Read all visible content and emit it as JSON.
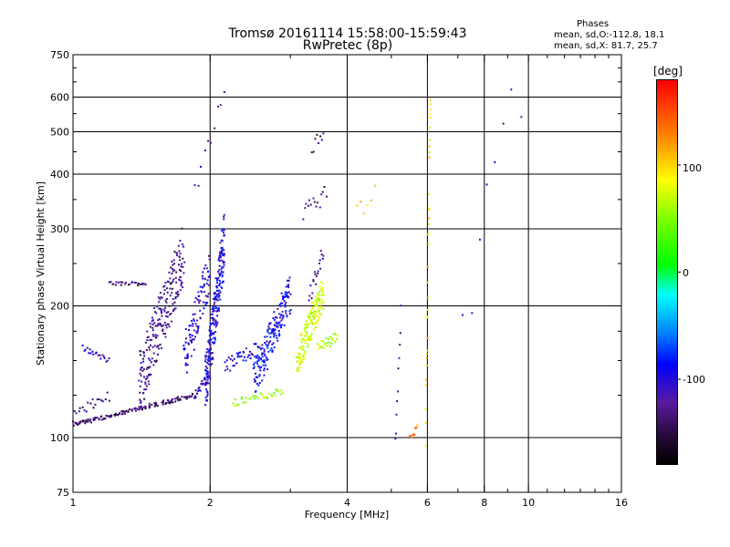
{
  "header": {
    "title_line1": "Tromsø 20161114 15:58:00-15:59:43",
    "title_line2": "RwPretec (8p)",
    "phases_title": "Phases",
    "phases_line1": "mean, sd,O:-112.8, 18.1",
    "phases_line2": "mean, sd,X:  81.7, 25.7"
  },
  "colorbar": {
    "unit_label": "[deg]",
    "ticks": [
      "100",
      "0",
      "-100"
    ],
    "tick_values": [
      100,
      0,
      -100
    ],
    "range": [
      -180,
      180
    ]
  },
  "colors": {
    "frame": "#000000",
    "background": "#ffffff"
  },
  "chart_data": {
    "type": "scatter",
    "title": "Tromsø 20161114 15:58:00-15:59:43",
    "subtitle": "RwPretec (8p)",
    "xlabel": "Frequency [MHz]",
    "ylabel": "Stationary phase Virtual Height [km]",
    "xscale": "log",
    "yscale": "log",
    "xlim": [
      1,
      16
    ],
    "ylim": [
      75,
      750
    ],
    "xticks": [
      "1",
      "2",
      "4",
      "6",
      "8",
      "10",
      "16"
    ],
    "xtick_values": [
      1,
      2,
      4,
      6,
      8,
      10,
      16
    ],
    "yticks": [
      "750",
      "600",
      "500",
      "400",
      "300",
      "200",
      "100",
      "75"
    ],
    "ytick_values": [
      750,
      600,
      500,
      400,
      300,
      200,
      100,
      75
    ],
    "x_gridlines": [
      2,
      4,
      6,
      8,
      10
    ],
    "y_gridlines": [
      100,
      200,
      300,
      400,
      500,
      600
    ],
    "grid": true,
    "color_variable": "phase [deg]",
    "point_groups": [
      {
        "x_range": [
          1.0,
          1.85
        ],
        "h_start": 107,
        "h_end": 125,
        "phase": -135,
        "n": 150,
        "spread": 0.01
      },
      {
        "x_range": [
          1.85,
          2.0
        ],
        "h_start": 125,
        "h_end": 140,
        "phase": -115,
        "n": 25,
        "spread": 0.02
      },
      {
        "x_range": [
          1.0,
          1.2
        ],
        "h_start": 112,
        "h_end": 125,
        "phase": -130,
        "n": 20,
        "spread": 0.03
      },
      {
        "x_range": [
          1.05,
          1.2
        ],
        "h_start": 160,
        "h_end": 150,
        "phase": -110,
        "n": 20,
        "spread": 0.015
      },
      {
        "x_range": [
          1.2,
          1.45
        ],
        "h_start": 225,
        "h_end": 225,
        "phase": -130,
        "n": 25,
        "spread": 0.01
      },
      {
        "x_range": [
          1.4,
          1.75
        ],
        "h_start": 135,
        "h_end": 260,
        "phase": -125,
        "n": 220,
        "spread": 0.16
      },
      {
        "x_range": [
          1.75,
          2.0
        ],
        "h_start": 150,
        "h_end": 240,
        "phase": -105,
        "n": 100,
        "spread": 0.12
      },
      {
        "x_range": [
          1.95,
          2.15
        ],
        "h_start": 130,
        "h_end": 280,
        "phase": -100,
        "n": 240,
        "spread": 0.15
      },
      {
        "x_range": [
          2.15,
          2.55
        ],
        "h_start": 145,
        "h_end": 160,
        "phase": -105,
        "n": 40,
        "spread": 0.04
      },
      {
        "x_range": [
          2.5,
          3.0
        ],
        "h_start": 135,
        "h_end": 215,
        "phase": -95,
        "n": 180,
        "spread": 0.1
      },
      {
        "x_range": [
          2.25,
          2.9
        ],
        "h_start": 120,
        "h_end": 128,
        "phase": 55,
        "n": 35,
        "spread": 0.02
      },
      {
        "x_range": [
          3.1,
          3.55
        ],
        "h_start": 150,
        "h_end": 215,
        "phase": 75,
        "n": 160,
        "spread": 0.09
      },
      {
        "x_range": [
          3.45,
          3.8
        ],
        "h_start": 160,
        "h_end": 170,
        "phase": 70,
        "n": 25,
        "spread": 0.03
      },
      {
        "x_range": [
          3.3,
          3.55
        ],
        "h_start": 210,
        "h_end": 265,
        "phase": -120,
        "n": 20,
        "spread": 0.05
      },
      {
        "x_range": [
          3.2,
          3.6
        ],
        "h_start": 330,
        "h_end": 360,
        "phase": -130,
        "n": 15,
        "spread": 0.05
      },
      {
        "x_range": [
          3.35,
          3.55
        ],
        "h_start": 460,
        "h_end": 500,
        "phase": -130,
        "n": 8,
        "spread": 0.04
      },
      {
        "x_range": [
          1.85,
          2.15
        ],
        "h_start": 370,
        "h_end": 630,
        "phase": -110,
        "n": 10,
        "spread": 0.06
      },
      {
        "x_range": [
          5.95,
          6.1
        ],
        "h_start": 100,
        "h_end": 640,
        "phase": 95,
        "n": 35,
        "spread": 0.15
      },
      {
        "x_range": [
          4.2,
          4.6
        ],
        "h_start": 330,
        "h_end": 360,
        "phase": 100,
        "n": 6,
        "spread": 0.05
      },
      {
        "x_range": [
          5.1,
          5.25
        ],
        "h_start": 95,
        "h_end": 195,
        "phase": -115,
        "n": 10,
        "spread": 0.05
      },
      {
        "x_range": [
          5.5,
          5.7
        ],
        "h_start": 100,
        "h_end": 105,
        "phase": 140,
        "n": 8,
        "spread": 0.02
      },
      {
        "x_range": [
          7.2,
          9.6
        ],
        "h_start": 200,
        "h_end": 600,
        "phase": -115,
        "n": 8,
        "spread": 0.2
      }
    ]
  }
}
